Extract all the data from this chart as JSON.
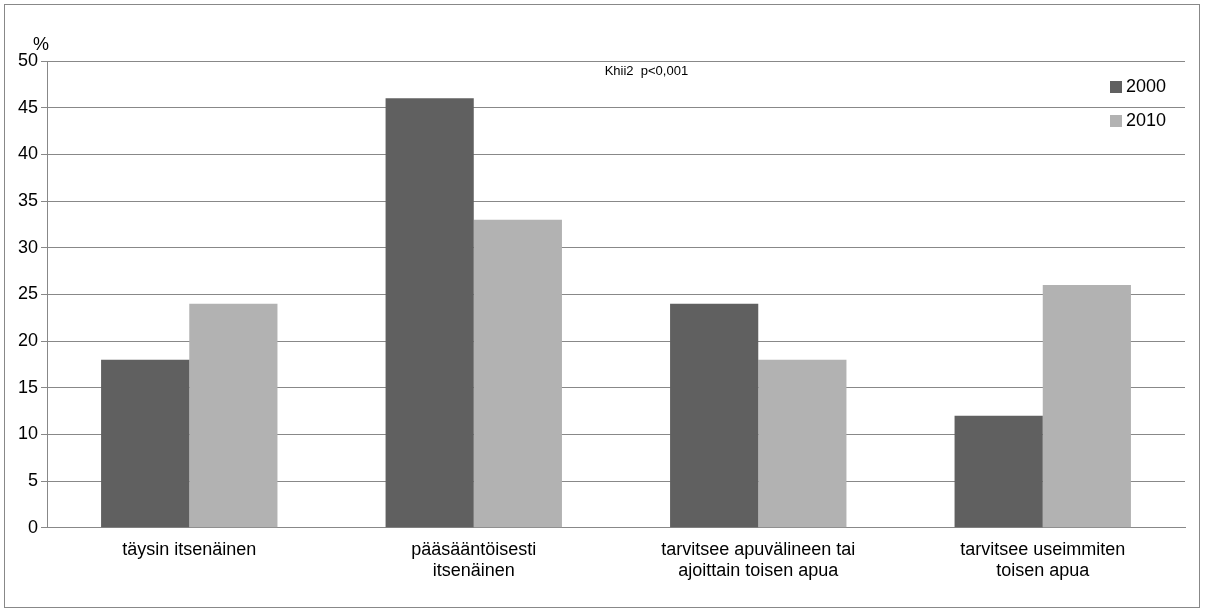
{
  "chart_data": {
    "type": "bar",
    "ylabel": "%",
    "categories": [
      "täysin itsenäinen",
      "pääsääntöisesti itsenäinen",
      "tarvitsee apuvälineen tai ajoittain toisen apua",
      "tarvitsee useimmiten toisen apua"
    ],
    "series": [
      {
        "name": "2000",
        "color": "#606060",
        "values": [
          18,
          46,
          24,
          12
        ]
      },
      {
        "name": "2010",
        "color": "#b2b2b2",
        "values": [
          24,
          33,
          18,
          26
        ]
      }
    ],
    "ylim": [
      0,
      50
    ],
    "yticks": [
      0,
      5,
      10,
      15,
      20,
      25,
      30,
      35,
      40,
      45,
      50
    ],
    "grid": "y",
    "legend": "top right",
    "annotations": [
      "Khii2  p<0,001"
    ]
  }
}
